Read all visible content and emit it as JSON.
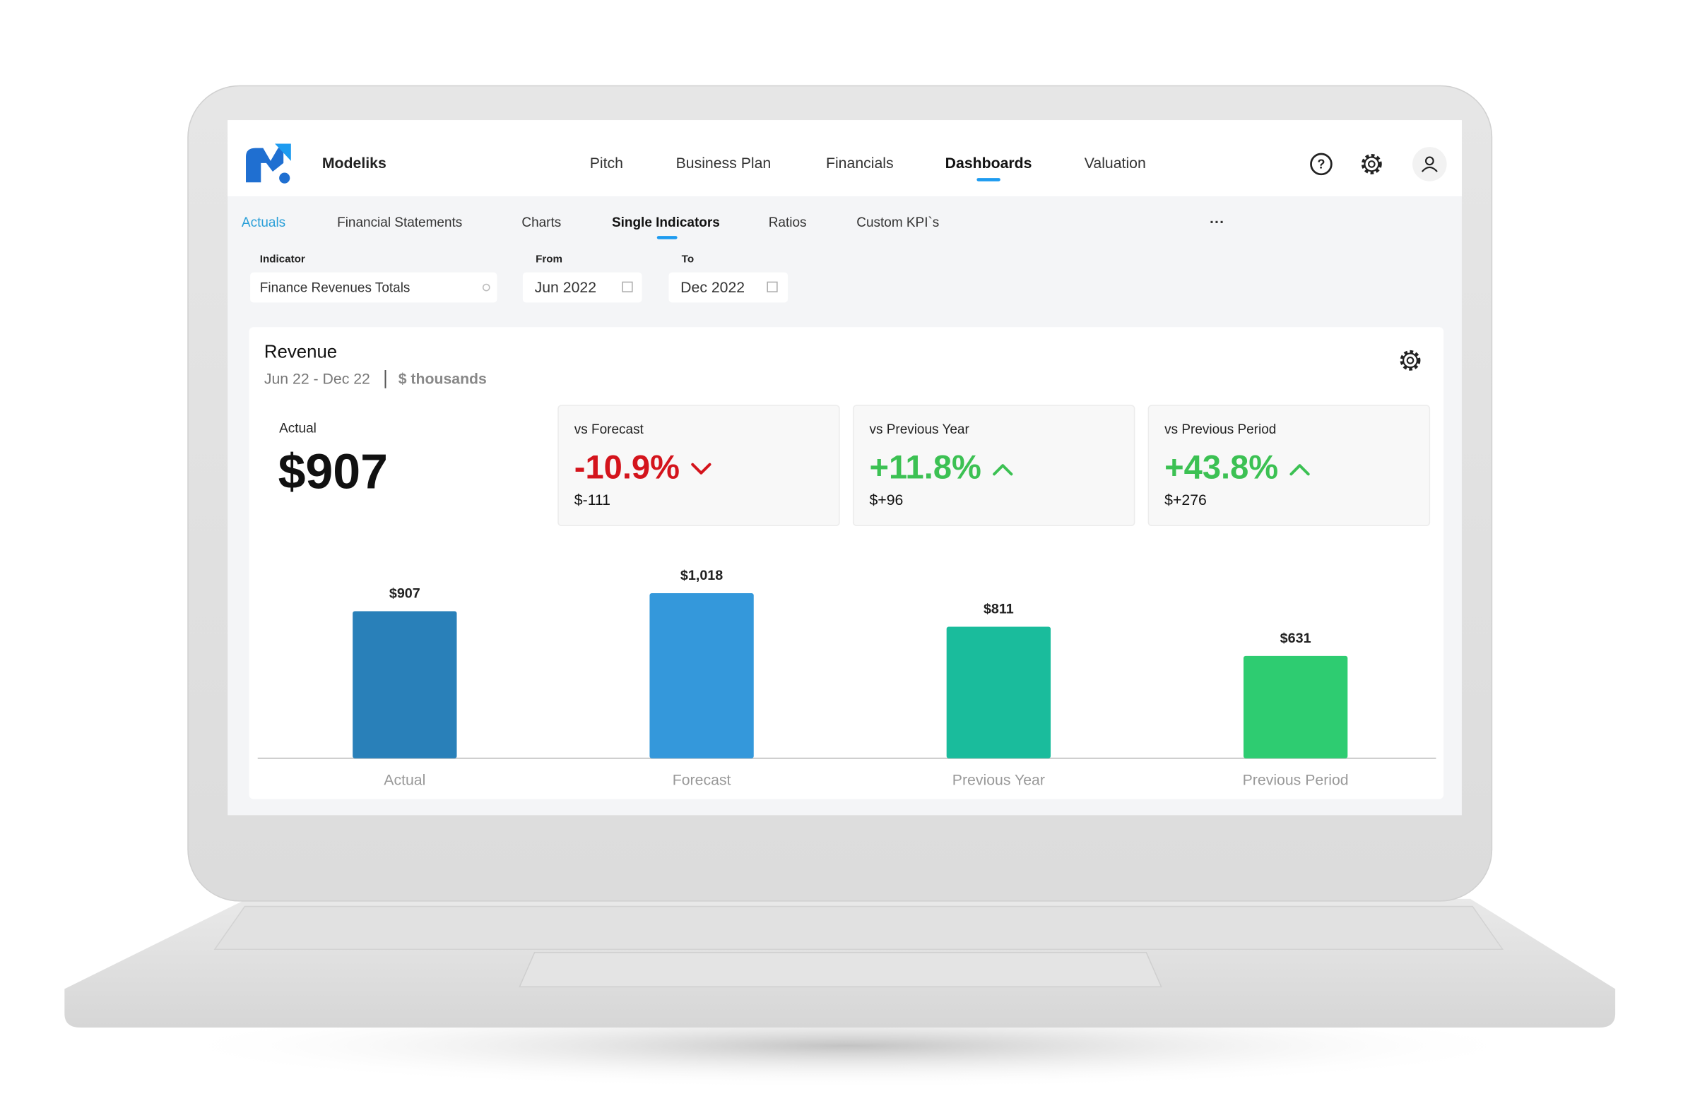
{
  "brand": "Modeliks",
  "nav": [
    "Pitch",
    "Business Plan",
    "Financials",
    "Dashboards",
    "Valuation"
  ],
  "tabs": [
    "Actuals",
    "Financial Statements",
    "Charts",
    "Single Indicators",
    "Ratios",
    "Custom KPI`s"
  ],
  "filters": {
    "indicator": {
      "label": "Indicator",
      "value": "Finance Revenues Totals"
    },
    "from": {
      "label": "From",
      "value": "Jun 2022"
    },
    "to": {
      "label": "To",
      "value": "Dec 2022"
    }
  },
  "card": {
    "title": "Revenue",
    "period": "Jun 22 - Dec 22",
    "unit": "$ thousands",
    "actual": {
      "label": "Actual",
      "value": "$907"
    },
    "comparisons": [
      {
        "label": "vs Forecast",
        "change": "-10.9%",
        "difference": "$-111",
        "color": "#d4141c"
      },
      {
        "label": "vs Previous Year",
        "change": "+11.8%",
        "difference": "$+96",
        "color": "#3cc153"
      },
      {
        "label": "vs Previous Period",
        "change": "+43.8%",
        "difference": "$+276",
        "color": "#3cc153"
      }
    ]
  },
  "chart": {
    "type": "bar",
    "categories": [
      "Actual",
      "Forecast",
      "Previous Year",
      "Previous Period"
    ],
    "values": [
      907,
      1018,
      811,
      631
    ],
    "value_labels": [
      "$907",
      "$1,018",
      "$811",
      "$631"
    ],
    "colors": [
      "#2980b9",
      "#3498db",
      "#1abc9c",
      "#2ecc71"
    ]
  }
}
